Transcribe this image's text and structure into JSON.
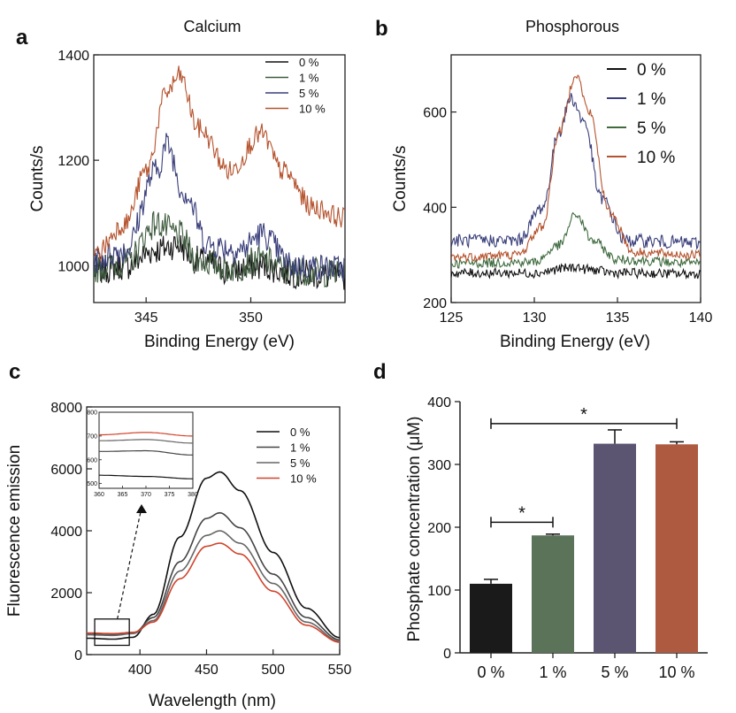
{
  "chart_data": [
    {
      "panel": "a",
      "type": "line",
      "title": "Calcium",
      "xlabel": "Binding Energy (eV)",
      "ylabel": "Counts/s",
      "xlim": [
        342.5,
        354.5
      ],
      "ylim": [
        930,
        1400
      ],
      "xticks": [
        345,
        350
      ],
      "yticks": [
        1000,
        1200,
        1400
      ],
      "legend": "top-right",
      "series": [
        {
          "name": "0 %",
          "color": "#111111",
          "noise": 28,
          "x": [
            342.5,
            344,
            345.5,
            346.5,
            347.5,
            349,
            350.5,
            352,
            354.5
          ],
          "y": [
            990,
            1000,
            1030,
            1040,
            1010,
            990,
            1000,
            985,
            980
          ]
        },
        {
          "name": "1 %",
          "color": "#3f5b3f",
          "noise": 28,
          "x": [
            342.5,
            344,
            345.5,
            346.5,
            347.5,
            349,
            350.5,
            352,
            354.5
          ],
          "y": [
            995,
            1005,
            1080,
            1060,
            1010,
            995,
            1010,
            990,
            985
          ]
        },
        {
          "name": "5 %",
          "color": "#3a3f7a",
          "noise": 26,
          "x": [
            342.5,
            344,
            345.5,
            346,
            346.8,
            348,
            349.5,
            350.5,
            352,
            354.5
          ],
          "y": [
            1010,
            1030,
            1180,
            1230,
            1140,
            1040,
            1030,
            1060,
            1000,
            995
          ]
        },
        {
          "name": "10 %",
          "color": "#b5532e",
          "noise": 20,
          "x": [
            342.5,
            344,
            345,
            346,
            346.6,
            347.5,
            349,
            350.5,
            351.5,
            353,
            354.5
          ],
          "y": [
            1020,
            1080,
            1180,
            1330,
            1360,
            1260,
            1180,
            1250,
            1180,
            1110,
            1090
          ]
        }
      ]
    },
    {
      "panel": "b",
      "type": "line",
      "title": "Phosphorous",
      "xlabel": "Binding Energy (eV)",
      "ylabel": "Counts/s",
      "xlim": [
        125,
        140
      ],
      "ylim": [
        200,
        720
      ],
      "xticks": [
        125,
        130,
        135,
        140
      ],
      "yticks": [
        200,
        400,
        600
      ],
      "legend": "top-right",
      "series": [
        {
          "name": "0 %",
          "color": "#111111",
          "noise": 10,
          "x": [
            125,
            130,
            132,
            132.5,
            133,
            135,
            140
          ],
          "y": [
            262,
            262,
            272,
            275,
            270,
            262,
            260
          ]
        },
        {
          "name": "1 %",
          "color": "#3a3f7a",
          "noise": 14,
          "x": [
            125,
            129,
            130.5,
            131.5,
            132.2,
            133,
            134,
            135.5,
            140
          ],
          "y": [
            330,
            330,
            400,
            560,
            630,
            580,
            420,
            330,
            325
          ]
        },
        {
          "name": "5 %",
          "color": "#3f6b3f",
          "noise": 10,
          "x": [
            125,
            130,
            131.5,
            132.5,
            133.5,
            135,
            140
          ],
          "y": [
            282,
            285,
            320,
            385,
            330,
            290,
            282
          ]
        },
        {
          "name": "10 %",
          "color": "#b5532e",
          "noise": 10,
          "x": [
            125,
            129,
            130.5,
            131.5,
            132.5,
            133.3,
            134.5,
            136,
            140
          ],
          "y": [
            295,
            300,
            360,
            560,
            680,
            600,
            390,
            305,
            300
          ]
        }
      ]
    },
    {
      "panel": "c",
      "type": "line",
      "xlabel": "Wavelength (nm)",
      "ylabel": "Fluorescence emission",
      "xlim": [
        360,
        550
      ],
      "ylim": [
        0,
        8000
      ],
      "xticks": [
        400,
        450,
        500,
        550
      ],
      "yticks": [
        0,
        2000,
        4000,
        6000,
        8000
      ],
      "legend": "top-right",
      "series": [
        {
          "name": "0 %",
          "color": "#111111",
          "x": [
            360,
            380,
            395,
            410,
            430,
            450,
            460,
            475,
            500,
            525,
            550
          ],
          "y": [
            530,
            500,
            560,
            1300,
            3800,
            5700,
            5900,
            5300,
            3300,
            1500,
            550
          ]
        },
        {
          "name": "1 %",
          "color": "#444444",
          "x": [
            360,
            380,
            395,
            410,
            430,
            450,
            460,
            475,
            500,
            525,
            550
          ],
          "y": [
            660,
            640,
            690,
            1200,
            3000,
            4400,
            4580,
            4100,
            2600,
            1200,
            480
          ]
        },
        {
          "name": "5 %",
          "color": "#666666",
          "x": [
            360,
            380,
            395,
            410,
            430,
            450,
            460,
            475,
            500,
            525,
            550
          ],
          "y": [
            640,
            620,
            680,
            1100,
            2700,
            3850,
            4000,
            3600,
            2300,
            1050,
            430
          ]
        },
        {
          "name": "10 %",
          "color": "#d0442c",
          "x": [
            360,
            380,
            395,
            410,
            430,
            450,
            460,
            475,
            500,
            525,
            550
          ],
          "y": [
            700,
            680,
            720,
            1050,
            2450,
            3500,
            3600,
            3250,
            2050,
            950,
            400
          ]
        }
      ],
      "inset": {
        "xlim": [
          360,
          380
        ],
        "ylim": [
          480,
          800
        ],
        "xticks": [
          360,
          365,
          370,
          375,
          380
        ],
        "yticks": [
          500,
          600,
          700,
          800
        ],
        "series": [
          {
            "color": "#111111",
            "x": [
              360,
              370,
              380
            ],
            "y": [
              535,
              530,
              520
            ]
          },
          {
            "color": "#444444",
            "x": [
              360,
              370,
              380
            ],
            "y": [
              635,
              638,
              620
            ]
          },
          {
            "color": "#666666",
            "x": [
              360,
              370,
              380
            ],
            "y": [
              680,
              685,
              670
            ]
          },
          {
            "color": "#d0442c",
            "x": [
              360,
              370,
              380
            ],
            "y": [
              705,
              715,
              700
            ]
          }
        ]
      }
    },
    {
      "panel": "d",
      "type": "bar",
      "ylabel": "Phosphate concentration (μM)",
      "categories": [
        "0 %",
        "1 %",
        "5 %",
        "10 %"
      ],
      "values": [
        110,
        187,
        333,
        332
      ],
      "errors": [
        7,
        2,
        22,
        4
      ],
      "colors": [
        "#1a1a1a",
        "#5b7359",
        "#5b5572",
        "#ad5a41"
      ],
      "ylim": [
        0,
        400
      ],
      "yticks": [
        0,
        100,
        200,
        300,
        400
      ],
      "significance": [
        {
          "from": 0,
          "to": 1,
          "label": "*",
          "y": 208
        },
        {
          "from": 0,
          "to": 3,
          "label": "*",
          "y": 365
        }
      ]
    }
  ],
  "panel_labels": [
    "a",
    "b",
    "c",
    "d"
  ]
}
